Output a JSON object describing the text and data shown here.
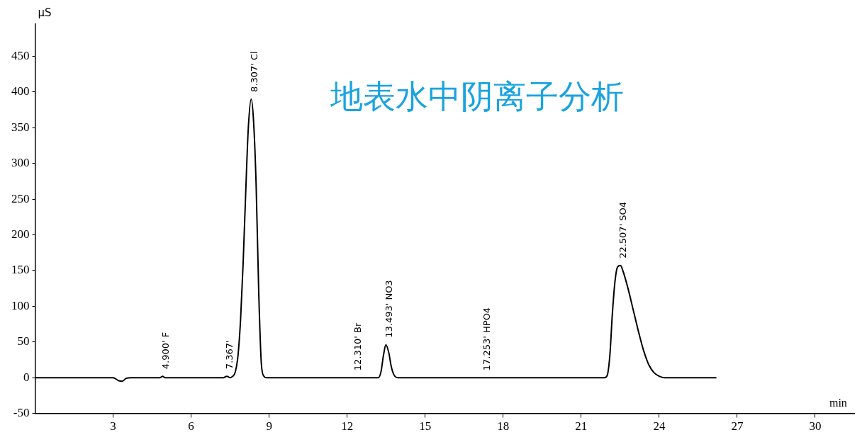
{
  "chart_data": {
    "type": "line",
    "title": "地表水中阴离子分析",
    "xlabel": "min",
    "ylabel": "μS",
    "series": [
      {
        "color": "#000000",
        "x": [
          0,
          3.0,
          3.2,
          3.35,
          3.5,
          3.7,
          4.8,
          4.9,
          5.0,
          7.25,
          7.37,
          7.5,
          7.6,
          7.7,
          7.8,
          7.9,
          8.0,
          8.1,
          8.2,
          8.31,
          8.4,
          8.5,
          8.6,
          8.7,
          8.8,
          8.9,
          13.2,
          13.3,
          13.4,
          13.49,
          13.6,
          13.7,
          13.8,
          13.95,
          21.9,
          22.0,
          22.1,
          22.2,
          22.3,
          22.4,
          22.51,
          22.6,
          22.8,
          23.0,
          23.2,
          23.4,
          23.6,
          23.8,
          24.0,
          24.2,
          26.2
        ],
        "values": [
          0,
          0,
          -4,
          -5,
          -1,
          0,
          0,
          2,
          0,
          0,
          2,
          0,
          2,
          8,
          30,
          80,
          160,
          260,
          350,
          390,
          360,
          270,
          120,
          20,
          2,
          0,
          0,
          8,
          32,
          46,
          35,
          15,
          4,
          0,
          0,
          3,
          30,
          90,
          135,
          155,
          157,
          150,
          125,
          95,
          65,
          38,
          18,
          7,
          2,
          0,
          0
        ]
      }
    ],
    "annotations": [
      {
        "text": "4.900' F",
        "x": 4.9,
        "y": 2
      },
      {
        "text": "7.367'",
        "x": 7.367,
        "y": 2
      },
      {
        "text": "8.307' Cl",
        "x": 8.307,
        "y": 390
      },
      {
        "text": "12.310' Br",
        "x": 12.31,
        "y": 0
      },
      {
        "text": "13.493' NO3",
        "x": 13.493,
        "y": 46
      },
      {
        "text": "17.253' HPO4",
        "x": 17.253,
        "y": 0
      },
      {
        "text": "22.507' SO4",
        "x": 22.507,
        "y": 157
      }
    ],
    "xlim": [
      0,
      31.5
    ],
    "xticks": [
      3,
      6,
      9,
      12,
      15,
      18,
      21,
      24,
      27,
      30
    ],
    "ylim": [
      -50,
      495
    ],
    "yticks": [
      -50,
      0,
      50,
      100,
      150,
      200,
      250,
      300,
      350,
      400,
      450
    ],
    "grid": false,
    "legend": false,
    "marker": "none",
    "line_style": "solid"
  }
}
